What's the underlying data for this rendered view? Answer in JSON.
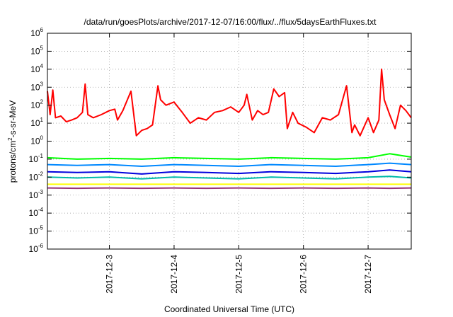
{
  "chart_data": {
    "type": "line",
    "title": "/data/run/goesPlots/archive/2017-12-07/16:00/flux/../flux/5daysEarthFluxes.txt",
    "xlabel": "Coordinated Universal Time (UTC)",
    "ylabel": "protons/cm2-s-sr-MeV",
    "ylabel_parts": [
      "protons/cm",
      "2",
      "-s-sr-MeV"
    ],
    "yscale": "log",
    "ylim": [
      1e-06,
      1000000.0
    ],
    "xlim": [
      "2017-12-02T01:00",
      "2017-12-07T16:00"
    ],
    "x_ticks": [
      {
        "value": "2017-12-03T00:00",
        "label": "2017-12-3"
      },
      {
        "value": "2017-12-04T00:00",
        "label": "2017-12-4"
      },
      {
        "value": "2017-12-05T00:00",
        "label": "2017-12-5"
      },
      {
        "value": "2017-12-06T00:00",
        "label": "2017-12-6"
      },
      {
        "value": "2017-12-07T00:00",
        "label": "2017-12-7"
      }
    ],
    "y_ticks": [
      {
        "value": 1e-06,
        "base": "10",
        "exp": "-6"
      },
      {
        "value": 1e-05,
        "base": "10",
        "exp": "-5"
      },
      {
        "value": 0.0001,
        "base": "10",
        "exp": "-4"
      },
      {
        "value": 0.001,
        "base": "10",
        "exp": "-3"
      },
      {
        "value": 0.01,
        "base": "10",
        "exp": "-2"
      },
      {
        "value": 0.1,
        "base": "10",
        "exp": "-1"
      },
      {
        "value": 1,
        "base": "10",
        "exp": "0"
      },
      {
        "value": 10,
        "base": "10",
        "exp": "1"
      },
      {
        "value": 100,
        "base": "10",
        "exp": "2"
      },
      {
        "value": 1000,
        "base": "10",
        "exp": "3"
      },
      {
        "value": 10000,
        "base": "10",
        "exp": "4"
      },
      {
        "value": 100000,
        "base": "10",
        "exp": "5"
      },
      {
        "value": 1000000,
        "base": "10",
        "exp": "6"
      }
    ],
    "grid": true,
    "series": [
      {
        "color": "#ff0000",
        "x": [
          "2017-12-02T01:00",
          "2017-12-02T02:00",
          "2017-12-02T03:00",
          "2017-12-02T04:00",
          "2017-12-02T06:00",
          "2017-12-02T08:00",
          "2017-12-02T10:00",
          "2017-12-02T12:00",
          "2017-12-02T14:00",
          "2017-12-02T15:00",
          "2017-12-02T16:00",
          "2017-12-02T18:00",
          "2017-12-02T21:00",
          "2017-12-03T00:00",
          "2017-12-03T02:00",
          "2017-12-03T03:00",
          "2017-12-03T05:00",
          "2017-12-03T08:00",
          "2017-12-03T10:00",
          "2017-12-03T12:00",
          "2017-12-03T14:00",
          "2017-12-03T16:00",
          "2017-12-03T18:00",
          "2017-12-03T19:00",
          "2017-12-03T21:00",
          "2017-12-04T00:00",
          "2017-12-04T03:00",
          "2017-12-04T06:00",
          "2017-12-04T09:00",
          "2017-12-04T12:00",
          "2017-12-04T15:00",
          "2017-12-04T18:00",
          "2017-12-04T21:00",
          "2017-12-05T00:00",
          "2017-12-05T02:00",
          "2017-12-05T03:00",
          "2017-12-05T05:00",
          "2017-12-05T07:00",
          "2017-12-05T09:00",
          "2017-12-05T11:00",
          "2017-12-05T13:00",
          "2017-12-05T15:00",
          "2017-12-05T17:00",
          "2017-12-05T18:00",
          "2017-12-05T20:00",
          "2017-12-05T22:00",
          "2017-12-06T01:00",
          "2017-12-06T04:00",
          "2017-12-06T07:00",
          "2017-12-06T10:00",
          "2017-12-06T13:00",
          "2017-12-06T16:00",
          "2017-12-06T18:00",
          "2017-12-06T19:00",
          "2017-12-06T21:00",
          "2017-12-07T00:00",
          "2017-12-07T02:00",
          "2017-12-07T04:00",
          "2017-12-07T05:00",
          "2017-12-07T06:00",
          "2017-12-07T08:00",
          "2017-12-07T10:00",
          "2017-12-07T12:00",
          "2017-12-07T14:00",
          "2017-12-07T16:00"
        ],
        "values": [
          600,
          30,
          700,
          20,
          25,
          12,
          15,
          20,
          40,
          1500,
          30,
          20,
          30,
          50,
          60,
          15,
          50,
          600,
          2,
          4,
          5,
          8,
          1200,
          200,
          100,
          150,
          40,
          10,
          20,
          15,
          40,
          50,
          80,
          40,
          100,
          400,
          15,
          50,
          30,
          40,
          800,
          300,
          500,
          5,
          40,
          10,
          6,
          3,
          20,
          15,
          30,
          1200,
          3,
          8,
          2,
          20,
          3,
          15,
          10000,
          200,
          30,
          5,
          100,
          50,
          20
        ]
      },
      {
        "color": "#00ff00",
        "x": [
          "2017-12-02T01:00",
          "2017-12-02T12:00",
          "2017-12-03T00:00",
          "2017-12-03T12:00",
          "2017-12-04T00:00",
          "2017-12-04T12:00",
          "2017-12-05T00:00",
          "2017-12-05T12:00",
          "2017-12-06T00:00",
          "2017-12-06T12:00",
          "2017-12-07T00:00",
          "2017-12-07T08:00",
          "2017-12-07T16:00"
        ],
        "values": [
          0.12,
          0.1,
          0.11,
          0.1,
          0.12,
          0.11,
          0.1,
          0.12,
          0.11,
          0.1,
          0.12,
          0.2,
          0.13
        ]
      },
      {
        "color": "#0088ff",
        "x": [
          "2017-12-02T01:00",
          "2017-12-02T12:00",
          "2017-12-03T00:00",
          "2017-12-03T12:00",
          "2017-12-04T00:00",
          "2017-12-04T12:00",
          "2017-12-05T00:00",
          "2017-12-05T12:00",
          "2017-12-06T00:00",
          "2017-12-06T12:00",
          "2017-12-07T00:00",
          "2017-12-07T08:00",
          "2017-12-07T16:00"
        ],
        "values": [
          0.05,
          0.045,
          0.05,
          0.04,
          0.05,
          0.045,
          0.04,
          0.05,
          0.045,
          0.04,
          0.05,
          0.06,
          0.05
        ]
      },
      {
        "color": "#0000dd",
        "x": [
          "2017-12-02T01:00",
          "2017-12-02T12:00",
          "2017-12-03T00:00",
          "2017-12-03T12:00",
          "2017-12-04T00:00",
          "2017-12-04T12:00",
          "2017-12-05T00:00",
          "2017-12-05T12:00",
          "2017-12-06T00:00",
          "2017-12-06T12:00",
          "2017-12-07T00:00",
          "2017-12-07T08:00",
          "2017-12-07T16:00"
        ],
        "values": [
          0.02,
          0.018,
          0.02,
          0.015,
          0.02,
          0.018,
          0.016,
          0.02,
          0.018,
          0.016,
          0.02,
          0.025,
          0.02
        ]
      },
      {
        "color": "#00bbaa",
        "x": [
          "2017-12-02T01:00",
          "2017-12-02T12:00",
          "2017-12-03T00:00",
          "2017-12-03T12:00",
          "2017-12-04T00:00",
          "2017-12-04T12:00",
          "2017-12-05T00:00",
          "2017-12-05T12:00",
          "2017-12-06T00:00",
          "2017-12-06T12:00",
          "2017-12-07T00:00",
          "2017-12-07T08:00",
          "2017-12-07T16:00"
        ],
        "values": [
          0.01,
          0.009,
          0.01,
          0.008,
          0.01,
          0.009,
          0.008,
          0.01,
          0.009,
          0.008,
          0.01,
          0.011,
          0.009
        ]
      },
      {
        "color": "#ffff00",
        "x": [
          "2017-12-02T01:00",
          "2017-12-03T00:00",
          "2017-12-04T00:00",
          "2017-12-05T00:00",
          "2017-12-06T00:00",
          "2017-12-07T00:00",
          "2017-12-07T16:00"
        ],
        "values": [
          0.004,
          0.004,
          0.004,
          0.004,
          0.004,
          0.004,
          0.004
        ]
      },
      {
        "color": "#993377",
        "x": [
          "2017-12-02T01:00",
          "2017-12-02T12:00",
          "2017-12-03T00:00",
          "2017-12-03T12:00",
          "2017-12-04T00:00",
          "2017-12-04T12:00",
          "2017-12-05T00:00",
          "2017-12-05T12:00",
          "2017-12-06T00:00",
          "2017-12-06T12:00",
          "2017-12-07T00:00",
          "2017-12-07T08:00",
          "2017-12-07T16:00"
        ],
        "values": [
          0.0025,
          0.0024,
          0.0025,
          0.0024,
          0.0025,
          0.0024,
          0.0025,
          0.0024,
          0.0025,
          0.0024,
          0.0025,
          0.0024,
          0.0025
        ]
      }
    ]
  }
}
